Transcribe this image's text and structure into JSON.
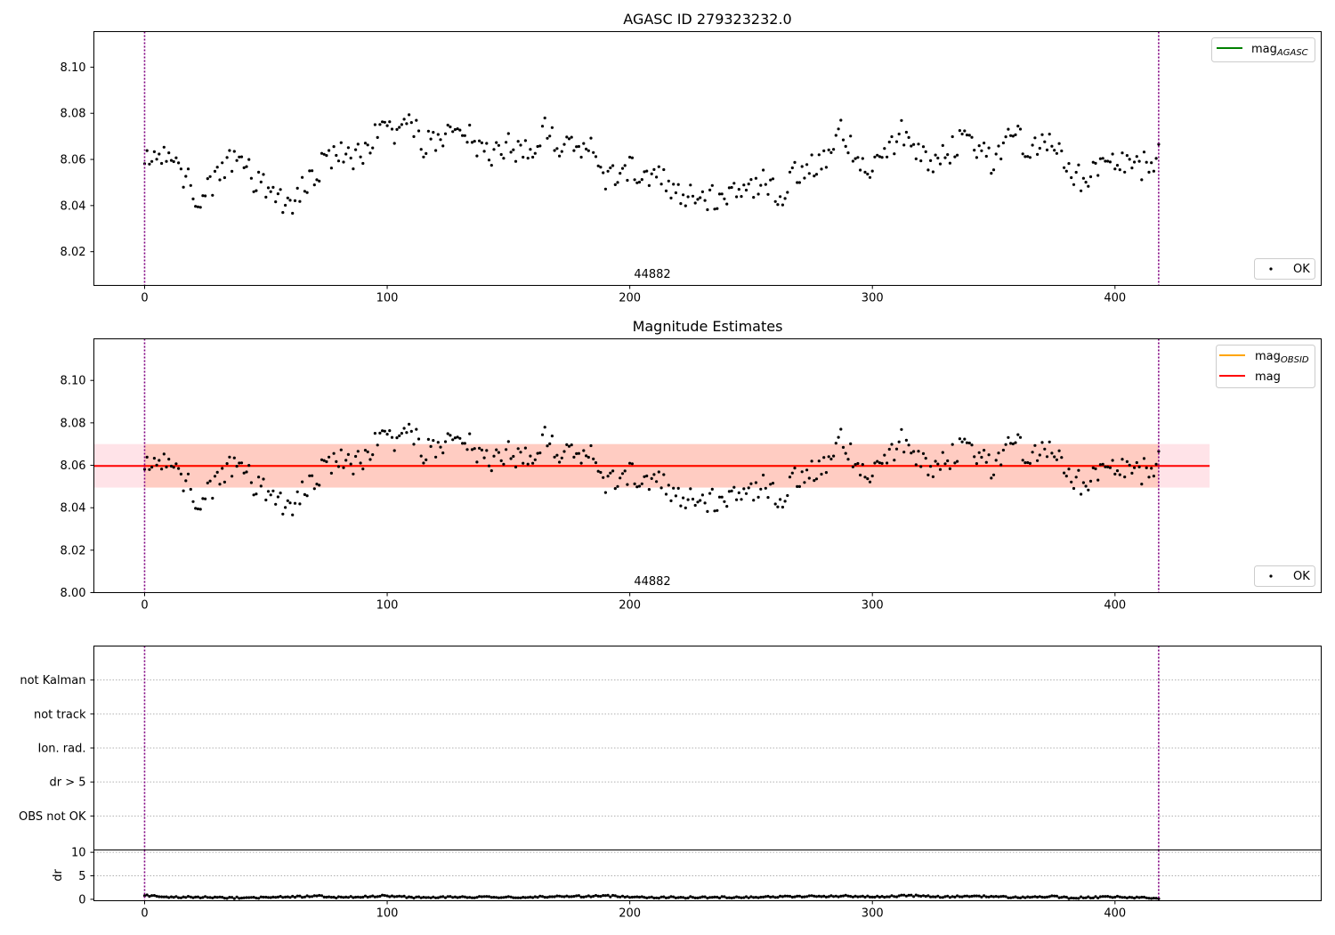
{
  "figure": {
    "colors": {
      "points": "#000000",
      "obs_boundary": "#800080",
      "mag_agasc": "#008000",
      "mag_obsid": "#ffa500",
      "mag": "#ff0000",
      "band_outer": "#ffc0cb",
      "band_inner": "#ffa07a",
      "grid": "#b0b0b0"
    }
  },
  "chart_data": [
    {
      "id": "agasc",
      "type": "scatter",
      "title": "AGASC ID 279323232.0",
      "xlim": [
        -20.9,
        485
      ],
      "ylim": [
        8.0054,
        8.1154
      ],
      "xticks": [
        "0",
        "100",
        "200",
        "300",
        "400"
      ],
      "yticks": [
        "8.02",
        "8.04",
        "8.06",
        "8.08",
        "8.10"
      ],
      "xtick_values": [
        0,
        100,
        200,
        300,
        400
      ],
      "ytick_values": [
        8.02,
        8.04,
        8.06,
        8.08,
        8.1
      ],
      "annotation": "44882",
      "obs_boundaries": [
        0,
        418
      ],
      "legend_upper": {
        "placement": "top-right",
        "entries": [
          {
            "label": "mag",
            "subscript": "AGASC",
            "kind": "line",
            "color": "#008000"
          }
        ]
      },
      "legend_lower": {
        "placement": "bottom-right",
        "entries": [
          {
            "label": "OK",
            "kind": "marker"
          }
        ]
      },
      "series": [
        {
          "name": "OK",
          "kind": "points",
          "note": "419 samples at x = 0..418, one per unit, mag values read approximately",
          "keypoints": [
            [
              0,
              8.061
            ],
            [
              5,
              8.066
            ],
            [
              12,
              8.057
            ],
            [
              18,
              8.05
            ],
            [
              22,
              8.044
            ],
            [
              30,
              8.052
            ],
            [
              37,
              8.061
            ],
            [
              45,
              8.052
            ],
            [
              52,
              8.045
            ],
            [
              58,
              8.039
            ],
            [
              63,
              8.044
            ],
            [
              70,
              8.054
            ],
            [
              78,
              8.063
            ],
            [
              87,
              8.059
            ],
            [
              95,
              8.072
            ],
            [
              103,
              8.072
            ],
            [
              110,
              8.078
            ],
            [
              115,
              8.066
            ],
            [
              125,
              8.071
            ],
            [
              135,
              8.07
            ],
            [
              140,
              8.062
            ],
            [
              150,
              8.066
            ],
            [
              158,
              8.062
            ],
            [
              165,
              8.073
            ],
            [
              172,
              8.063
            ],
            [
              178,
              8.066
            ],
            [
              184,
              8.067
            ],
            [
              190,
              8.05
            ],
            [
              197,
              8.055
            ],
            [
              205,
              8.055
            ],
            [
              212,
              8.053
            ],
            [
              218,
              8.047
            ],
            [
              225,
              8.044
            ],
            [
              232,
              8.043
            ],
            [
              240,
              8.045
            ],
            [
              248,
              8.046
            ],
            [
              255,
              8.052
            ],
            [
              262,
              8.042
            ],
            [
              268,
              8.055
            ],
            [
              275,
              8.057
            ],
            [
              282,
              8.062
            ],
            [
              288,
              8.074
            ],
            [
              293,
              8.058
            ],
            [
              300,
              8.058
            ],
            [
              305,
              8.06
            ],
            [
              312,
              8.071
            ],
            [
              318,
              8.066
            ],
            [
              325,
              8.059
            ],
            [
              332,
              8.063
            ],
            [
              340,
              8.071
            ],
            [
              345,
              8.064
            ],
            [
              350,
              8.058
            ],
            [
              355,
              8.068
            ],
            [
              360,
              8.071
            ],
            [
              365,
              8.064
            ],
            [
              372,
              8.069
            ],
            [
              378,
              8.064
            ],
            [
              383,
              8.053
            ],
            [
              388,
              8.051
            ],
            [
              395,
              8.058
            ],
            [
              402,
              8.058
            ],
            [
              410,
              8.056
            ],
            [
              418,
              8.062
            ]
          ]
        }
      ]
    },
    {
      "id": "estimates",
      "type": "scatter",
      "title": "Magnitude Estimates",
      "xlim": [
        -20.9,
        485
      ],
      "ylim": [
        8.0,
        8.1196
      ],
      "xticks": [
        "0",
        "100",
        "200",
        "300",
        "400"
      ],
      "yticks": [
        "8.00",
        "8.02",
        "8.04",
        "8.06",
        "8.08",
        "8.10"
      ],
      "xtick_values": [
        0,
        100,
        200,
        300,
        400
      ],
      "ytick_values": [
        8.0,
        8.02,
        8.04,
        8.06,
        8.08,
        8.1
      ],
      "annotation": "44882",
      "obs_boundaries": [
        0,
        418
      ],
      "legend_upper": {
        "placement": "top-right",
        "entries": [
          {
            "label": "mag",
            "subscript": "OBSID",
            "kind": "line",
            "color": "#ffa500"
          },
          {
            "label": "mag",
            "subscript": "",
            "kind": "line",
            "color": "#ff0000"
          }
        ]
      },
      "legend_lower": {
        "placement": "bottom-right",
        "entries": [
          {
            "label": "OK",
            "kind": "marker"
          }
        ]
      },
      "mag_line": {
        "x": [
          -20.9,
          439
        ],
        "y": 8.0597
      },
      "mag_obsid_line": {
        "x": [
          0,
          418
        ],
        "y": 8.0597
      },
      "band_outer": {
        "x": [
          -20.9,
          439
        ],
        "y": [
          8.0495,
          8.07
        ]
      },
      "band_inner": {
        "x": [
          0,
          418
        ],
        "y": [
          8.0495,
          8.07
        ]
      },
      "series_ref": "agasc"
    },
    {
      "id": "flags",
      "type": "scatter",
      "xlim": [
        -20.9,
        485
      ],
      "categories": [
        "not Kalman",
        "not track",
        "Ion. rad.",
        "dr > 5",
        "OBS not OK"
      ],
      "obs_boundaries": [
        0,
        418
      ],
      "gridlines": true
    },
    {
      "id": "dr",
      "type": "scatter",
      "ylabel": "dr",
      "xlim": [
        -20.9,
        485
      ],
      "ylim": [
        -0.3,
        10.5
      ],
      "xticks": [
        "0",
        "100",
        "200",
        "300",
        "400"
      ],
      "yticks": [
        "0",
        "5",
        "10"
      ],
      "xtick_values": [
        0,
        100,
        200,
        300,
        400
      ],
      "ytick_values": [
        0,
        5,
        10
      ],
      "obs_boundaries": [
        0,
        418
      ],
      "series": [
        {
          "name": "dr",
          "note": "419 samples at x = 0..418, values read approximately",
          "keypoints": [
            [
              0,
              0.9
            ],
            [
              10,
              0.4
            ],
            [
              20,
              0.5
            ],
            [
              35,
              0.3
            ],
            [
              50,
              0.4
            ],
            [
              60,
              0.5
            ],
            [
              72,
              0.7
            ],
            [
              78,
              0.4
            ],
            [
              90,
              0.5
            ],
            [
              98,
              0.8
            ],
            [
              110,
              0.4
            ],
            [
              125,
              0.5
            ],
            [
              150,
              0.4
            ],
            [
              170,
              0.6
            ],
            [
              192,
              0.7
            ],
            [
              210,
              0.4
            ],
            [
              235,
              0.4
            ],
            [
              255,
              0.5
            ],
            [
              270,
              0.6
            ],
            [
              290,
              0.7
            ],
            [
              300,
              0.5
            ],
            [
              315,
              0.8
            ],
            [
              330,
              0.5
            ],
            [
              342,
              0.7
            ],
            [
              360,
              0.4
            ],
            [
              375,
              0.6
            ],
            [
              380,
              0.3
            ],
            [
              400,
              0.5
            ],
            [
              418,
              0.2
            ]
          ]
        }
      ]
    }
  ]
}
